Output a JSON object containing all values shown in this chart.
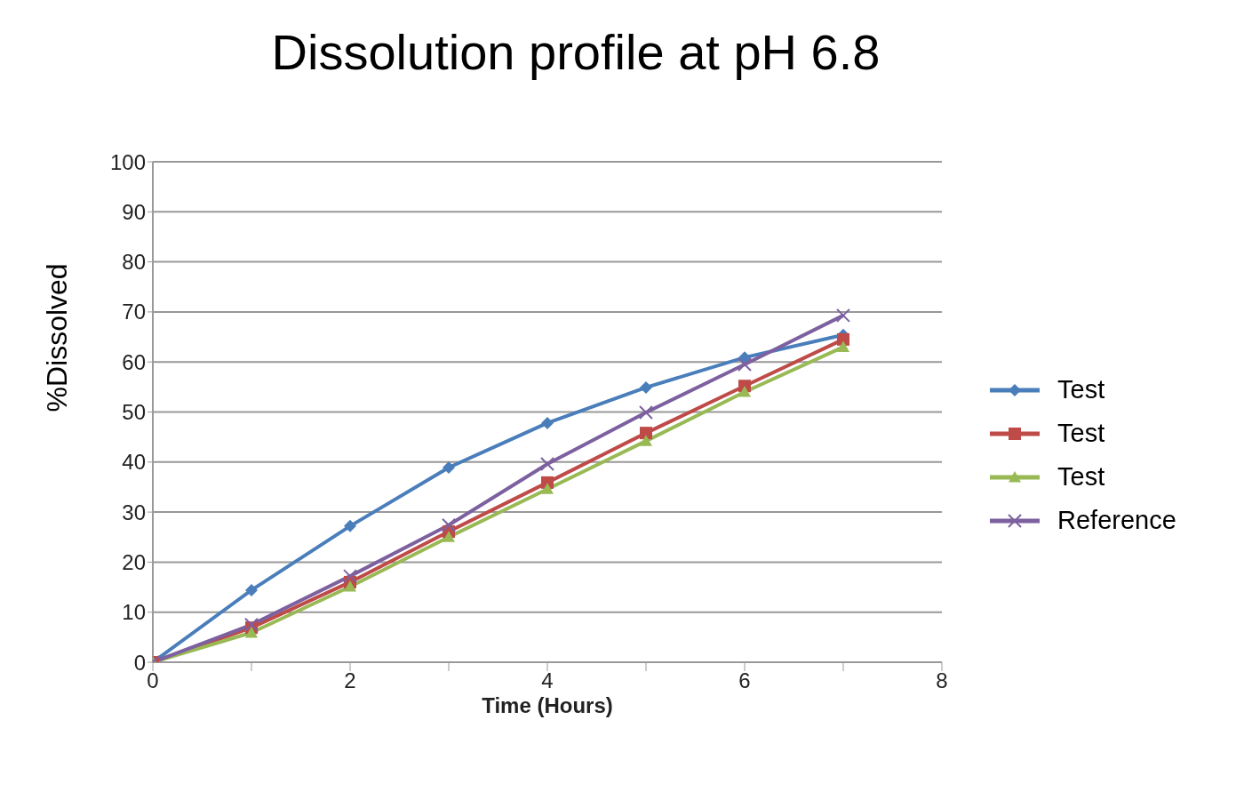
{
  "chart_data": {
    "type": "line",
    "title": "Dissolution profile at pH 6.8",
    "xlabel": "Time (Hours)",
    "ylabel": "%Dissolved",
    "x": [
      0,
      1,
      2,
      3,
      4,
      5,
      6,
      7
    ],
    "xlim": [
      0,
      8
    ],
    "xticks": [
      0,
      {
        "value": 1,
        "label": null
      },
      2,
      {
        "value": 3,
        "label": null
      },
      4,
      {
        "value": 5,
        "label": null
      },
      6,
      {
        "value": 7,
        "label": null
      },
      8
    ],
    "ylim": [
      0,
      100
    ],
    "yticks": [
      0,
      10,
      20,
      30,
      40,
      50,
      60,
      70,
      80,
      90,
      100
    ],
    "grid": "y",
    "legend": "right",
    "line_style": "solid",
    "series": [
      {
        "name": "Test",
        "color": "#4a7ebb",
        "marker": "diamond",
        "values": [
          0,
          14.4,
          27.2,
          38.9,
          47.8,
          54.9,
          60.9,
          65.4
        ]
      },
      {
        "name": "Test",
        "color": "#be4b48",
        "marker": "square",
        "values": [
          0,
          6.9,
          16,
          26.1,
          35.9,
          45.8,
          55.2,
          64.5
        ]
      },
      {
        "name": "Test",
        "color": "#98b954",
        "marker": "triangle",
        "values": [
          0,
          5.9,
          15.1,
          25,
          34.6,
          44.2,
          54,
          63
        ]
      },
      {
        "name": "Reference",
        "color": "#7d60a0",
        "marker": "cross",
        "values": [
          0,
          7.5,
          17.2,
          27.4,
          39.6,
          49.9,
          59.5,
          69.3
        ]
      }
    ]
  }
}
